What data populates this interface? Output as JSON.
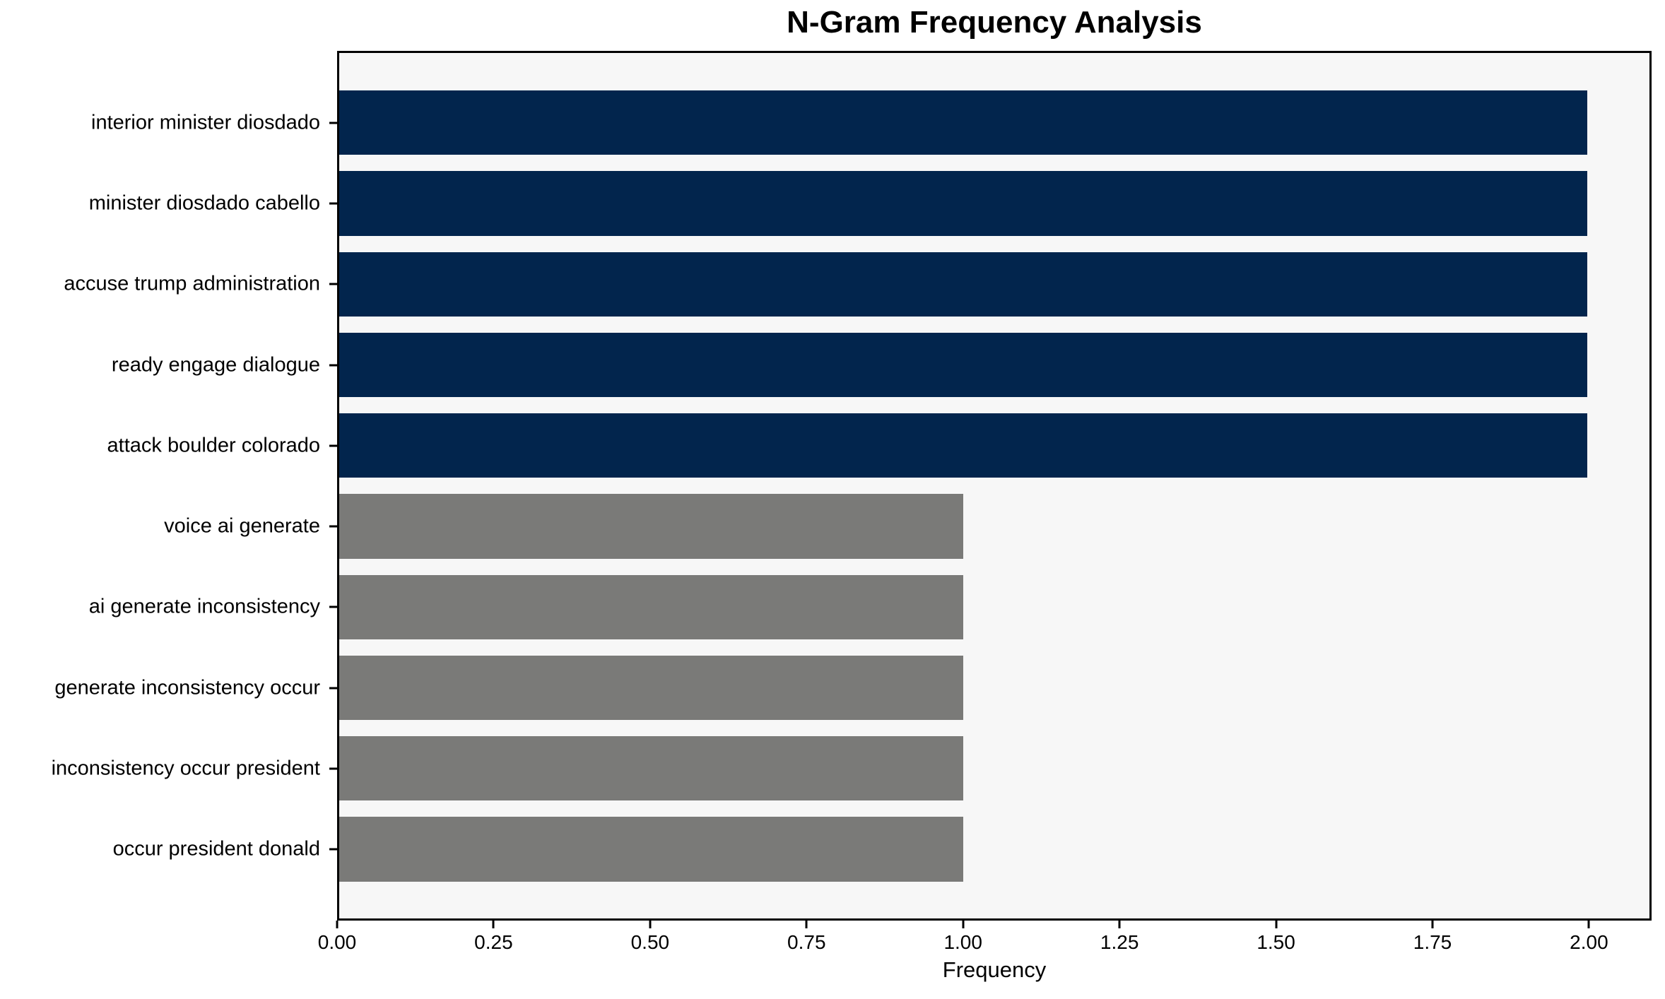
{
  "figure": {
    "background": "#ffffff",
    "plot_background": "#f7f7f7",
    "spine_color": "#000000"
  },
  "chart_data": {
    "type": "bar",
    "orientation": "horizontal",
    "title": "N-Gram Frequency Analysis",
    "xlabel": "Frequency",
    "ylabel": "",
    "grid": false,
    "legend_position": "none",
    "xlim": [
      0,
      2.1
    ],
    "categories": [
      "interior minister diosdado",
      "minister diosdado cabello",
      "accuse trump administration",
      "ready engage dialogue",
      "attack boulder colorado",
      "voice ai generate",
      "ai generate inconsistency",
      "generate inconsistency occur",
      "inconsistency occur president",
      "occur president donald"
    ],
    "values": [
      2,
      2,
      2,
      2,
      2,
      1,
      1,
      1,
      1,
      1
    ],
    "bar_colors": [
      "#02254d",
      "#02254d",
      "#02254d",
      "#02254d",
      "#02254d",
      "#7a7a78",
      "#7a7a78",
      "#7a7a78",
      "#7a7a78",
      "#7a7a78"
    ],
    "highlight_color": "#02254d",
    "default_color": "#7a7a78",
    "xticks": [
      0,
      0.25,
      0.5,
      0.75,
      1.0,
      1.25,
      1.5,
      1.75,
      2.0
    ],
    "xtick_labels": [
      "0.00",
      "0.25",
      "0.50",
      "0.75",
      "1.00",
      "1.25",
      "1.50",
      "1.75",
      "2.00"
    ]
  }
}
